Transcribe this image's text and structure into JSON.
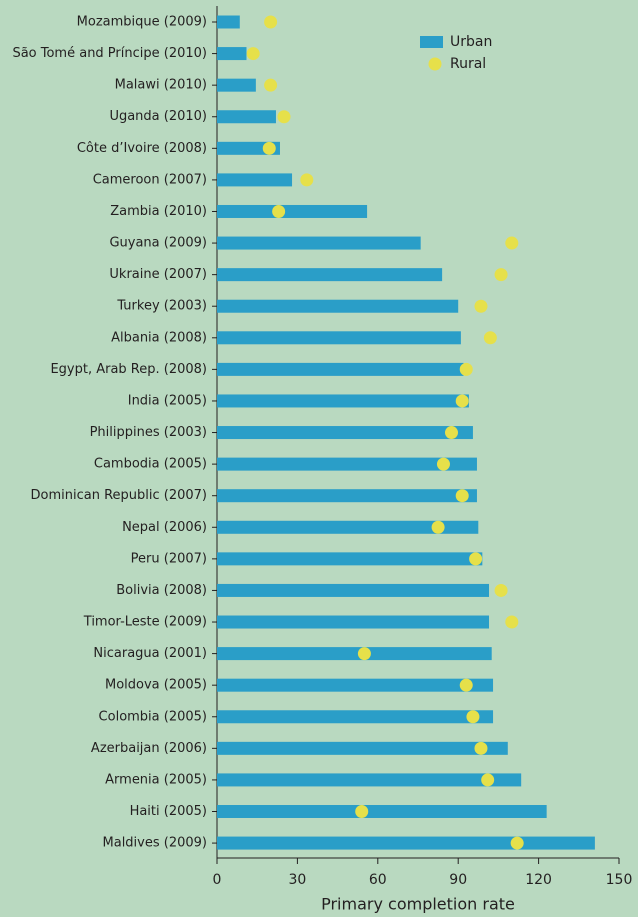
{
  "chart_data": {
    "type": "bar",
    "orientation": "horizontal",
    "categories": [
      "Mozambique (2009)",
      "São Tomé and Príncipe (2010)",
      "Malawi  (2010)",
      "Uganda (2010)",
      "Côte d’Ivoire (2008)",
      "Cameroon (2007)",
      "Zambia (2010)",
      "Guyana (2009)",
      "Ukraine (2007)",
      "Turkey (2003)",
      "Albania (2008)",
      "Egypt, Arab Rep. (2008)",
      "India (2005)",
      "Philippines (2003)",
      "Cambodia (2005)",
      "Dominican Republic (2007)",
      "Nepal (2006)",
      "Peru (2007)",
      "Bolivia (2008)",
      "Timor-Leste (2009)",
      "Nicaragua (2001)",
      "Moldova (2005)",
      "Colombia (2005)",
      "Azerbaijan (2006)",
      "Armenia (2005)",
      "Haiti (2005)",
      "Maldives (2009)"
    ],
    "series": [
      {
        "name": "Urban",
        "color": "#2a9ec8",
        "mark": "bar",
        "values": [
          8.5,
          11,
          14.5,
          22,
          23.5,
          28,
          56,
          76,
          84,
          90,
          91,
          92,
          94,
          95.5,
          97,
          97,
          97.5,
          99,
          101.5,
          101.5,
          102.5,
          103,
          103,
          108.5,
          113.5,
          123,
          141
        ]
      },
      {
        "name": "Rural",
        "color": "#e6e04a",
        "mark": "dot",
        "values": [
          20,
          13.5,
          20,
          25,
          19.5,
          33.5,
          23,
          110,
          106,
          98.5,
          102,
          93,
          91.5,
          87.5,
          84.5,
          91.5,
          82.5,
          96.5,
          106,
          110,
          55,
          93,
          95.5,
          98.5,
          101,
          54,
          112
        ]
      }
    ],
    "xlabel": "Primary completion rate",
    "xlim": [
      0,
      150
    ],
    "xticks": [
      0,
      30,
      60,
      90,
      120,
      150
    ],
    "legend": "upper right"
  }
}
